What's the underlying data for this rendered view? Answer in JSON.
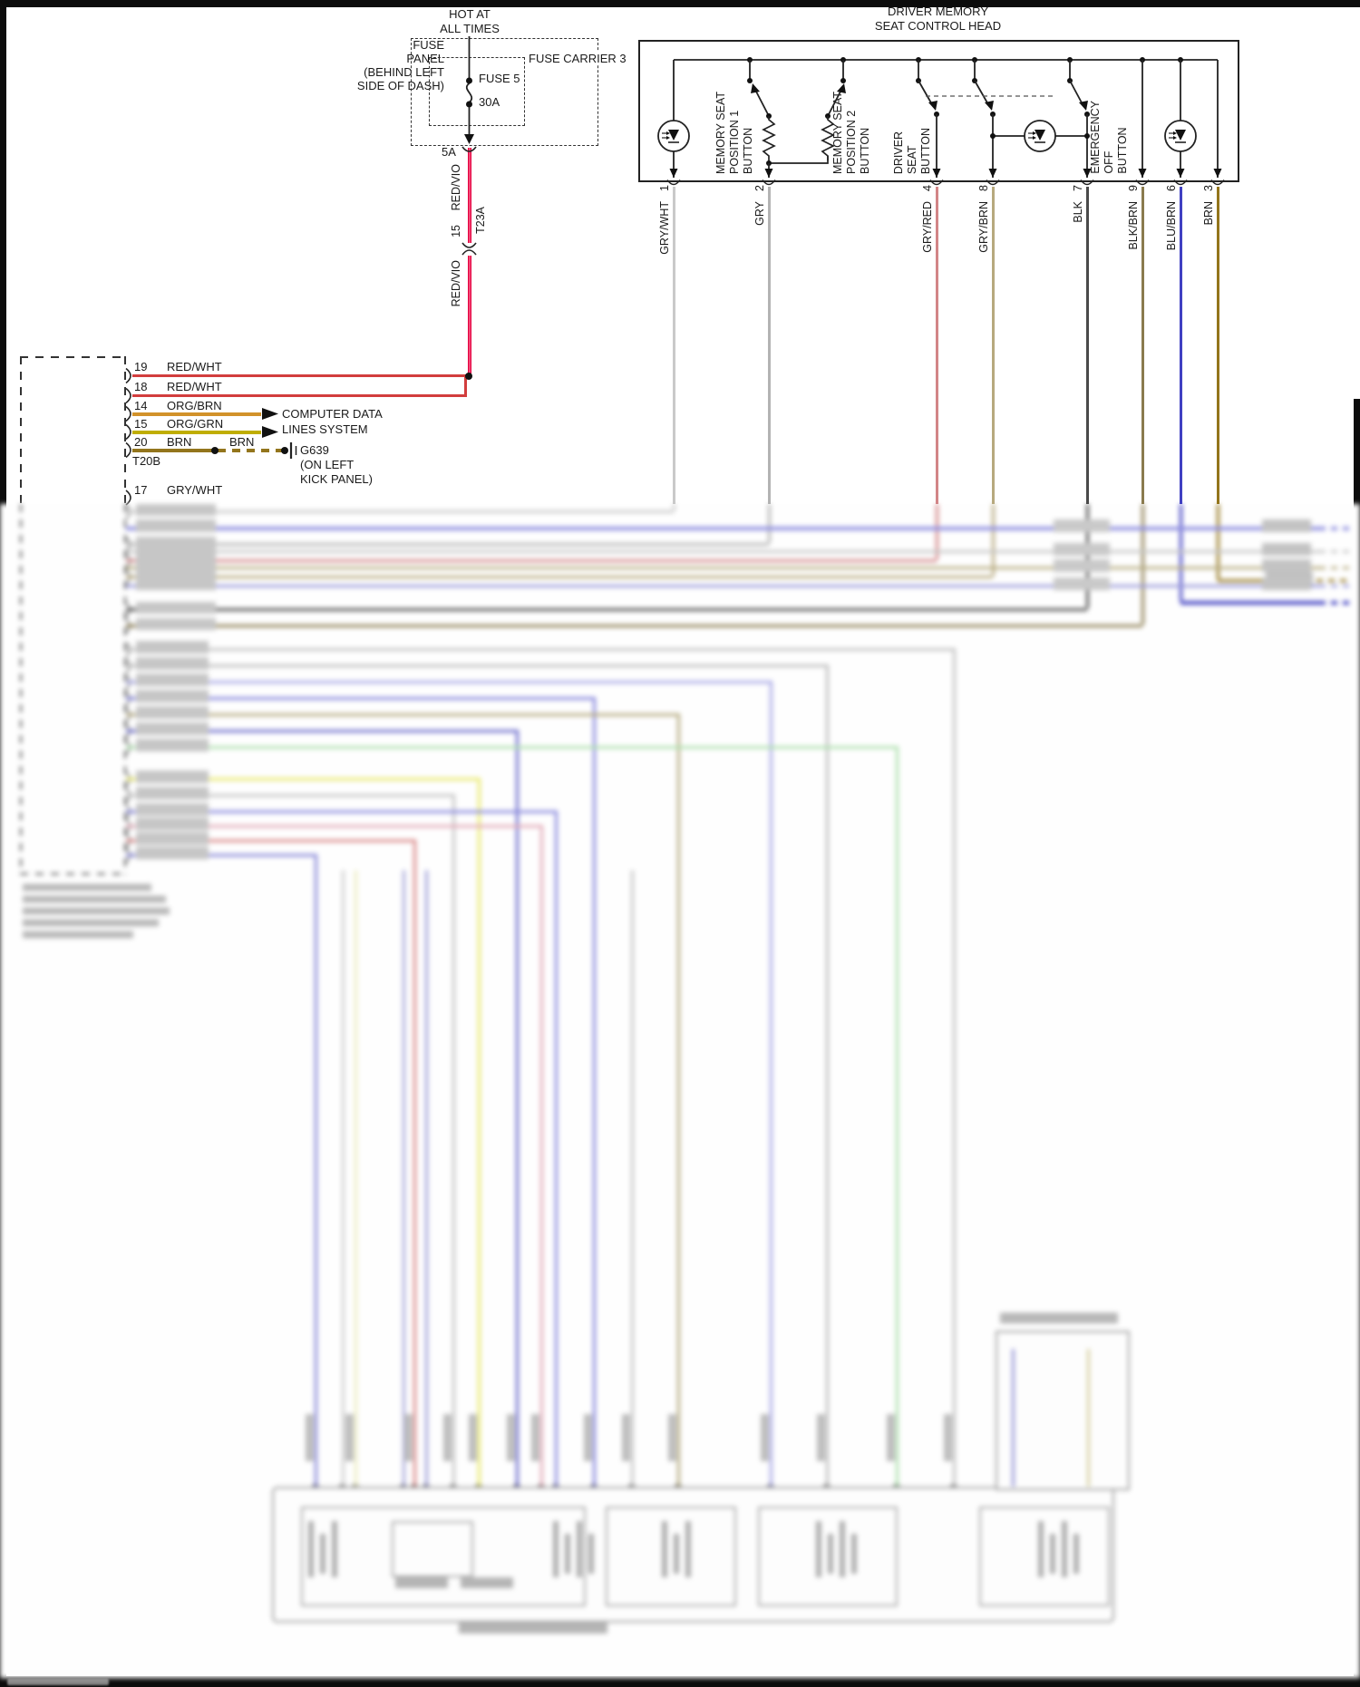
{
  "page": {
    "power_label_line1": "HOT AT",
    "power_label_line2": "ALL TIMES",
    "fuse_panel_label": [
      "FUSE",
      "PANEL",
      "(BEHIND LEFT",
      "SIDE OF DASH)"
    ],
    "fuse_carrier_label": "FUSE CARRIER 3",
    "fuse_name": "FUSE 5",
    "fuse_rating": "30A",
    "fuse_output_rating": "5A"
  },
  "supply_wire": {
    "color_label": "RED/VIO",
    "hex": "#e4003f",
    "inline_connector_pin": "15",
    "inline_connector_code": "T23A",
    "color_label_lower": "RED/VIO"
  },
  "control_head": {
    "title_line1": "DRIVER MEMORY",
    "title_line2": "SEAT CONTROL HEAD",
    "buttons": [
      {
        "l1": "MEMORY SEAT",
        "l2": "POSITION 1",
        "l3": "BUTTON"
      },
      {
        "l1": "MEMORY SEAT",
        "l2": "POSITION 2",
        "l3": "BUTTON"
      },
      {
        "l1": "DRIVER",
        "l2": "SEAT",
        "l3": "BUTTON"
      },
      {
        "l1": "EMERGENCY",
        "l2": "OFF",
        "l3": "BUTTON"
      }
    ],
    "pins": [
      {
        "num": "1",
        "wire": "GRY/WHT",
        "hex": "#c9c9c9"
      },
      {
        "num": "2",
        "wire": "GRY",
        "hex": "#b3b3b3"
      },
      {
        "num": "4",
        "wire": "GRY/RED",
        "hex": "#d28587"
      },
      {
        "num": "8",
        "wire": "GRY/BRN",
        "hex": "#b7a97e"
      },
      {
        "num": "7",
        "wire": "BLK",
        "hex": "#4a4a4a"
      },
      {
        "num": "9",
        "wire": "BLK/BRN",
        "hex": "#8a7b4e"
      },
      {
        "num": "6",
        "wire": "BLU/BRN",
        "hex": "#4040c2"
      },
      {
        "num": "3",
        "wire": "BRN",
        "hex": "#93751c"
      }
    ]
  },
  "left_connector": {
    "code": "T20B",
    "pins": [
      {
        "num": "19",
        "wire": "RED/WHT",
        "hex": "#d23d3d"
      },
      {
        "num": "18",
        "wire": "RED/WHT",
        "hex": "#d23d3d"
      },
      {
        "num": "14",
        "wire": "ORG/BRN",
        "hex": "#d2922a"
      },
      {
        "num": "15",
        "wire": "ORG/GRN",
        "hex": "#bfad00"
      },
      {
        "num": "20",
        "wire": "BRN",
        "hex": "#93751c"
      },
      {
        "num": "17",
        "wire": "GRY/WHT",
        "hex": "#c9c9c9"
      }
    ],
    "data_lines_line1": "COMPUTER DATA",
    "data_lines_line2": "LINES SYSTEM",
    "ground_wire_label": "BRN",
    "ground_code": "G639",
    "ground_loc_line1": "(ON LEFT",
    "ground_loc_line2": "KICK PANEL)"
  }
}
